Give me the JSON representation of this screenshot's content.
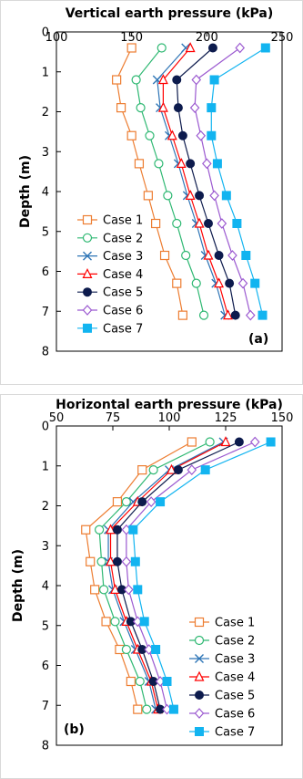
{
  "chart_data": [
    {
      "type": "line",
      "title": "Vertical earth pressure (kPa)",
      "xlabel": "Vertical earth pressure (kPa)",
      "ylabel": "Depth (m)",
      "panel_label": "(a)",
      "x_axis_position": "top",
      "y_inverted": true,
      "xlim": [
        100,
        250
      ],
      "ylim": [
        0,
        8
      ],
      "x_ticks": [
        "100",
        "150",
        "200",
        "250"
      ],
      "y_ticks": [
        "0",
        "1",
        "2",
        "3",
        "4",
        "5",
        "6",
        "7",
        "8"
      ],
      "legend_position": "bottom-left",
      "depths": [
        0.4,
        1.2,
        1.9,
        2.6,
        3.3,
        4.1,
        4.8,
        5.6,
        6.3,
        7.1
      ],
      "series": [
        {
          "name": "Case 1",
          "marker": "square-open",
          "color": "#ED7D31",
          "x": [
            150,
            140,
            143,
            150,
            155,
            161,
            166,
            172,
            180,
            184
          ]
        },
        {
          "name": "Case 2",
          "marker": "circle-open",
          "color": "#2EB872",
          "x": [
            170,
            153,
            156,
            162,
            168,
            174,
            180,
            186,
            193,
            198
          ]
        },
        {
          "name": "Case 3",
          "marker": "x",
          "color": "#2E75B6",
          "x": [
            186,
            167,
            169,
            175,
            181,
            187,
            193,
            199,
            206,
            212
          ]
        },
        {
          "name": "Case 4",
          "marker": "triangle-open",
          "color": "#FF0000",
          "x": [
            189,
            171,
            171,
            177,
            183,
            189,
            195,
            201,
            208,
            214
          ]
        },
        {
          "name": "Case 5",
          "marker": "circle-filled",
          "color": "#0D1B4D",
          "x": [
            204,
            180,
            181,
            184,
            189,
            195,
            201,
            208,
            215,
            219
          ]
        },
        {
          "name": "Case 6",
          "marker": "diamond-open",
          "color": "#9B59D0",
          "x": [
            222,
            193,
            192,
            196,
            200,
            205,
            210,
            217,
            224,
            229
          ]
        },
        {
          "name": "Case 7",
          "marker": "square-filled",
          "color": "#12B4F0",
          "x": [
            239,
            205,
            203,
            203,
            207,
            213,
            220,
            226,
            232,
            237
          ]
        }
      ]
    },
    {
      "type": "line",
      "title": "Horizontal earth pressure (kPa)",
      "xlabel": "Horizontal earth pressure (kPa)",
      "ylabel": "Depth (m)",
      "panel_label": "(b)",
      "x_axis_position": "top",
      "y_inverted": true,
      "xlim": [
        50,
        150
      ],
      "ylim": [
        0,
        8
      ],
      "x_ticks": [
        "50",
        "75",
        "100",
        "125",
        "150"
      ],
      "y_ticks": [
        "0",
        "1",
        "2",
        "3",
        "4",
        "5",
        "6",
        "7",
        "8"
      ],
      "legend_position": "bottom-right",
      "depths": [
        0.4,
        1.1,
        1.9,
        2.6,
        3.4,
        4.1,
        4.9,
        5.6,
        6.4,
        7.1
      ],
      "series": [
        {
          "name": "Case 1",
          "marker": "square-open",
          "color": "#ED7D31",
          "x": [
            110,
            88,
            77,
            63,
            65,
            67,
            72,
            78,
            83,
            86
          ]
        },
        {
          "name": "Case 2",
          "marker": "circle-open",
          "color": "#2EB872",
          "x": [
            118,
            93,
            81,
            69,
            70,
            71,
            76,
            81,
            87,
            90
          ]
        },
        {
          "name": "Case 3",
          "marker": "x",
          "color": "#2E75B6",
          "x": [
            124,
            100,
            84,
            73,
            73,
            75,
            80,
            85,
            91,
            94
          ]
        },
        {
          "name": "Case 4",
          "marker": "triangle-open",
          "color": "#FF0000",
          "x": [
            125,
            101,
            86,
            74,
            74,
            76,
            81,
            86,
            92,
            95
          ]
        },
        {
          "name": "Case 5",
          "marker": "circle-filled",
          "color": "#0D1B4D",
          "x": [
            131,
            104,
            88,
            77,
            77,
            79,
            83,
            88,
            93,
            96
          ]
        },
        {
          "name": "Case 6",
          "marker": "diamond-open",
          "color": "#9B59D0",
          "x": [
            138,
            110,
            92,
            81,
            81,
            82,
            86,
            91,
            96,
            99
          ]
        },
        {
          "name": "Case 7",
          "marker": "square-filled",
          "color": "#12B4F0",
          "x": [
            145,
            116,
            96,
            84,
            85,
            86,
            89,
            94,
            99,
            102
          ]
        }
      ]
    }
  ]
}
